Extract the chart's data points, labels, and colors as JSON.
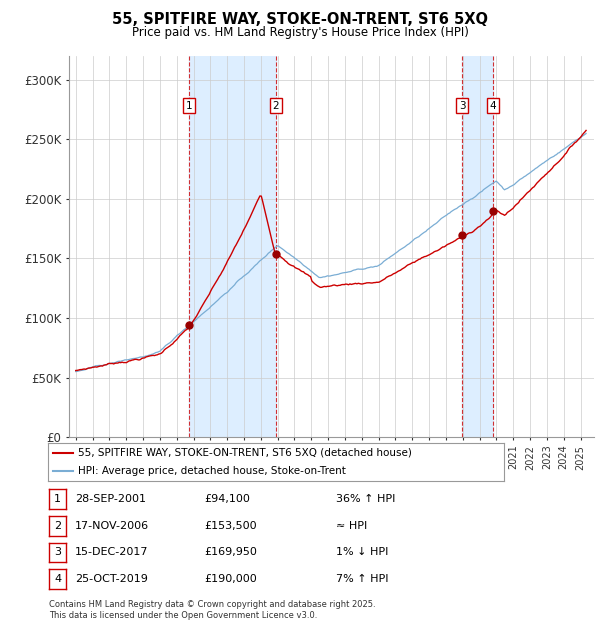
{
  "title": "55, SPITFIRE WAY, STOKE-ON-TRENT, ST6 5XQ",
  "subtitle": "Price paid vs. HM Land Registry's House Price Index (HPI)",
  "ylim": [
    0,
    320000
  ],
  "yticks": [
    0,
    50000,
    100000,
    150000,
    200000,
    250000,
    300000
  ],
  "ytick_labels": [
    "£0",
    "£50K",
    "£100K",
    "£150K",
    "£200K",
    "£250K",
    "£300K"
  ],
  "xlim_start": 1994.6,
  "xlim_end": 2025.8,
  "sale_dates_num": [
    2001.74,
    2006.88,
    2017.96,
    2019.81
  ],
  "sale_prices": [
    94100,
    153500,
    169950,
    190000
  ],
  "sale_labels": [
    "1",
    "2",
    "3",
    "4"
  ],
  "hpi_color": "#7aadd4",
  "price_color": "#cc0000",
  "shade_color": "#ddeeff",
  "legend_label_price": "55, SPITFIRE WAY, STOKE-ON-TRENT, ST6 5XQ (detached house)",
  "legend_label_hpi": "HPI: Average price, detached house, Stoke-on-Trent",
  "table_data": [
    [
      "1",
      "28-SEP-2001",
      "£94,100",
      "36% ↑ HPI"
    ],
    [
      "2",
      "17-NOV-2006",
      "£153,500",
      "≈ HPI"
    ],
    [
      "3",
      "15-DEC-2017",
      "£169,950",
      "1% ↓ HPI"
    ],
    [
      "4",
      "25-OCT-2019",
      "£190,000",
      "7% ↑ HPI"
    ]
  ],
  "footer": "Contains HM Land Registry data © Crown copyright and database right 2025.\nThis data is licensed under the Open Government Licence v3.0.",
  "background_color": "#ffffff"
}
